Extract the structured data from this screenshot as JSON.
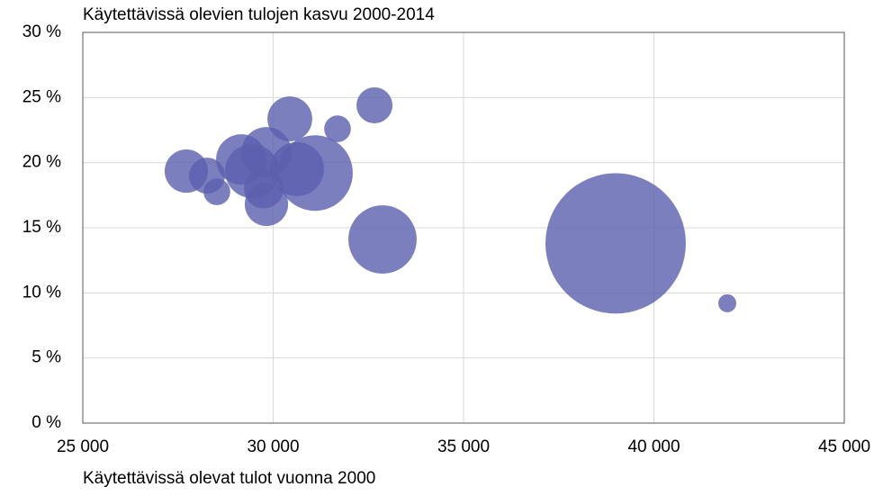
{
  "chart_data": {
    "type": "bubble",
    "title": "Käytettävissä olevien tulojen kasvu 2000-2014",
    "x_label": "Käytettävissä olevat tulot vuonna 2000",
    "color": "#5b5fae",
    "grid": true,
    "xlim": [
      25000,
      45000
    ],
    "xticks": [
      {
        "value": 25000,
        "label": "25 000"
      },
      {
        "value": 30000,
        "label": "30 000"
      },
      {
        "value": 35000,
        "label": "35 000"
      },
      {
        "value": 40000,
        "label": "40 000"
      },
      {
        "value": 45000,
        "label": "45 000"
      }
    ],
    "ylim": [
      0,
      30
    ],
    "yticks": [
      {
        "value": 0,
        "label": "0 %"
      },
      {
        "value": 5,
        "label": "5 %"
      },
      {
        "value": 10,
        "label": "10 %"
      },
      {
        "value": 15,
        "label": "15 %"
      },
      {
        "value": 20,
        "label": "20 %"
      },
      {
        "value": 25,
        "label": "25 %"
      },
      {
        "value": 30,
        "label": "30 %"
      }
    ],
    "x": [
      27719,
      28522,
      28262,
      29161,
      29823,
      29444,
      29823,
      29752,
      30437,
      31690,
      32660,
      31099,
      30626,
      32872,
      38995,
      41927
    ],
    "y": [
      19.35,
      17.76,
      19.0,
      20.25,
      20.8,
      19.35,
      16.8,
      18.0,
      23.36,
      22.6,
      24.4,
      19.2,
      19.5,
      14.1,
      13.8,
      9.2
    ],
    "sizes": [
      58,
      22,
      40,
      78,
      78,
      90,
      58,
      48,
      62,
      22,
      40,
      176,
      90,
      144,
      608,
      10
    ]
  }
}
